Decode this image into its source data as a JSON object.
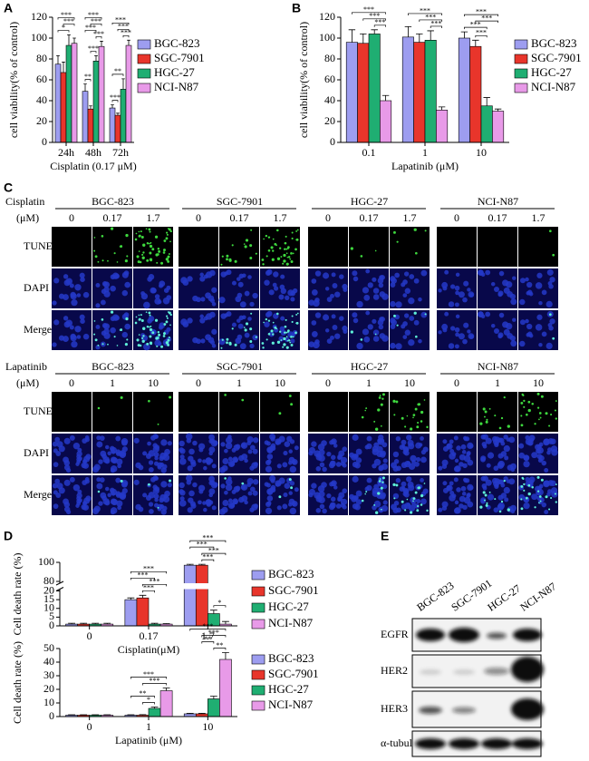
{
  "panel_labels": [
    "A",
    "B",
    "C",
    "D",
    "E"
  ],
  "chart_data": [
    {
      "type": "bar",
      "ylabel": "cell viability(% of control)",
      "xlabel": "Cisplatin (0.17 μM)",
      "categories": [
        "24h",
        "48h",
        "72h"
      ],
      "series": [
        {
          "name": "BGC-823",
          "color": "#9d9df0",
          "values": [
            75,
            49,
            33
          ],
          "errors": [
            8,
            7,
            3
          ]
        },
        {
          "name": "SGC-7901",
          "color": "#e8352b",
          "values": [
            67,
            32,
            26
          ],
          "errors": [
            10,
            3,
            2
          ]
        },
        {
          "name": "HGC-27",
          "color": "#1fae72",
          "values": [
            93,
            78,
            51
          ],
          "errors": [
            10,
            5,
            10
          ]
        },
        {
          "name": "NCI-N87",
          "color": "#e89ae8",
          "values": [
            95,
            92,
            93
          ],
          "errors": [
            5,
            5,
            5
          ]
        }
      ],
      "ylim": [
        0,
        120
      ],
      "yticks": [
        0,
        20,
        40,
        60,
        80,
        100,
        120
      ],
      "significance": [
        {
          "category": 0,
          "from": 0,
          "to": 2,
          "label": "*"
        },
        {
          "category": 0,
          "from": 1,
          "to": 3,
          "label": "***"
        },
        {
          "category": 0,
          "from": 0,
          "to": 3,
          "label": "***"
        },
        {
          "category": 1,
          "from": 0,
          "to": 1,
          "label": "**"
        },
        {
          "category": 1,
          "from": 1,
          "to": 2,
          "label": "***"
        },
        {
          "category": 1,
          "from": 2,
          "to": 3,
          "label": "***"
        },
        {
          "category": 1,
          "from": 0,
          "to": 2,
          "label": "***"
        },
        {
          "category": 1,
          "from": 1,
          "to": 3,
          "label": "***"
        },
        {
          "category": 1,
          "from": 0,
          "to": 3,
          "label": "***"
        },
        {
          "category": 2,
          "from": 0,
          "to": 1,
          "label": "***"
        },
        {
          "category": 2,
          "from": 0,
          "to": 2,
          "label": "**"
        },
        {
          "category": 2,
          "from": 2,
          "to": 3,
          "label": "***"
        },
        {
          "category": 2,
          "from": 1,
          "to": 3,
          "label": "***"
        },
        {
          "category": 2,
          "from": 0,
          "to": 3,
          "label": "***"
        }
      ]
    },
    {
      "type": "bar",
      "ylabel": "cell viability(% of control)",
      "xlabel": "Lapatinib (μM)",
      "categories": [
        "0.1",
        "1",
        "10"
      ],
      "series": [
        {
          "name": "BGC-823",
          "color": "#9d9df0",
          "values": [
            96,
            101,
            100
          ],
          "errors": [
            12,
            10,
            6
          ]
        },
        {
          "name": "SGC-7901",
          "color": "#e8352b",
          "values": [
            95,
            96,
            92
          ],
          "errors": [
            9,
            8,
            6
          ]
        },
        {
          "name": "HGC-27",
          "color": "#1fae72",
          "values": [
            104,
            98,
            35
          ],
          "errors": [
            4,
            9,
            8
          ]
        },
        {
          "name": "NCI-N87",
          "color": "#e89ae8",
          "values": [
            40,
            31,
            30
          ],
          "errors": [
            5,
            3,
            2
          ]
        }
      ],
      "ylim": [
        0,
        120
      ],
      "yticks": [
        0,
        20,
        40,
        60,
        80,
        100,
        120
      ],
      "significance": [
        {
          "category": 0,
          "from": 2,
          "to": 3,
          "label": "***"
        },
        {
          "category": 0,
          "from": 1,
          "to": 3,
          "label": "***"
        },
        {
          "category": 0,
          "from": 0,
          "to": 3,
          "label": "***"
        },
        {
          "category": 1,
          "from": 2,
          "to": 3,
          "label": "***"
        },
        {
          "category": 1,
          "from": 1,
          "to": 3,
          "label": "***"
        },
        {
          "category": 1,
          "from": 0,
          "to": 3,
          "label": "***"
        },
        {
          "category": 2,
          "from": 1,
          "to": 2,
          "label": "***"
        },
        {
          "category": 2,
          "from": 0,
          "to": 2,
          "label": "***"
        },
        {
          "category": 2,
          "from": 1,
          "to": 3,
          "label": "***"
        },
        {
          "category": 2,
          "from": 0,
          "to": 3,
          "label": "***"
        }
      ]
    },
    {
      "type": "bar",
      "ylabel": "Cell death rate (%)",
      "xlabel": "Cisplatin(μM)",
      "categories": [
        "0",
        "0.17",
        "1.7"
      ],
      "series": [
        {
          "name": "BGC-823",
          "color": "#9d9df0",
          "values": [
            1,
            15,
            97
          ],
          "errors": [
            0.5,
            1,
            1
          ]
        },
        {
          "name": "SGC-7901",
          "color": "#e8352b",
          "values": [
            1,
            16,
            97
          ],
          "errors": [
            0.5,
            1.5,
            1
          ]
        },
        {
          "name": "HGC-27",
          "color": "#1fae72",
          "values": [
            1,
            1,
            7
          ],
          "errors": [
            0.5,
            0.5,
            2
          ]
        },
        {
          "name": "NCI-N87",
          "color": "#e89ae8",
          "values": [
            1,
            1,
            1
          ],
          "errors": [
            0.5,
            0.3,
            1.5
          ]
        }
      ],
      "ylim": [
        0,
        100
      ],
      "ybreak": [
        20,
        80
      ],
      "yticks": [
        0,
        5,
        10,
        15,
        20,
        80,
        100
      ],
      "significance": [
        {
          "category": 1,
          "from": 1,
          "to": 2,
          "label": "***"
        },
        {
          "category": 1,
          "from": 1,
          "to": 3,
          "label": "***"
        },
        {
          "category": 1,
          "from": 0,
          "to": 2,
          "label": "***"
        },
        {
          "category": 1,
          "from": 0,
          "to": 3,
          "label": "***"
        },
        {
          "category": 2,
          "from": 2,
          "to": 3,
          "label": "*"
        },
        {
          "category": 2,
          "from": 1,
          "to": 2,
          "label": "***"
        },
        {
          "category": 2,
          "from": 1,
          "to": 3,
          "label": "***"
        },
        {
          "category": 2,
          "from": 0,
          "to": 2,
          "label": "***"
        },
        {
          "category": 2,
          "from": 0,
          "to": 3,
          "label": "***"
        }
      ]
    },
    {
      "type": "bar",
      "ylabel": "Cell death rate (%)",
      "xlabel": "Lapatinib (μM)",
      "categories": [
        "0",
        "1",
        "10"
      ],
      "series": [
        {
          "name": "BGC-823",
          "color": "#9d9df0",
          "values": [
            1,
            1,
            2
          ],
          "errors": [
            0.3,
            0.3,
            0.4
          ]
        },
        {
          "name": "SGC-7901",
          "color": "#e8352b",
          "values": [
            1,
            1,
            2
          ],
          "errors": [
            0.3,
            0.4,
            0.4
          ]
        },
        {
          "name": "HGC-27",
          "color": "#1fae72",
          "values": [
            1,
            6,
            13
          ],
          "errors": [
            0.3,
            1,
            2
          ]
        },
        {
          "name": "NCI-N87",
          "color": "#e89ae8",
          "values": [
            1,
            19,
            42
          ],
          "errors": [
            0.3,
            2,
            5
          ]
        }
      ],
      "ylim": [
        0,
        50
      ],
      "yticks": [
        0,
        10,
        20,
        30,
        40,
        50
      ],
      "significance": [
        {
          "category": 1,
          "from": 1,
          "to": 2,
          "label": "*"
        },
        {
          "category": 1,
          "from": 0,
          "to": 2,
          "label": "**"
        },
        {
          "category": 1,
          "from": 1,
          "to": 3,
          "label": "***"
        },
        {
          "category": 1,
          "from": 0,
          "to": 3,
          "label": "***"
        },
        {
          "category": 2,
          "from": 2,
          "to": 3,
          "label": "**"
        },
        {
          "category": 2,
          "from": 1,
          "to": 2,
          "label": "**"
        },
        {
          "category": 2,
          "from": 1,
          "to": 3,
          "label": "***"
        },
        {
          "category": 2,
          "from": 0,
          "to": 3,
          "label": "***"
        }
      ]
    }
  ],
  "microscopy": [
    {
      "treatment": "Cisplatin",
      "unit": "(μM)",
      "groups": [
        "BGC-823",
        "SGC-7901",
        "HGC-27",
        "NCI-N87"
      ],
      "doses": [
        "0",
        "0.17",
        "1.7"
      ],
      "rows": [
        "TUNEL",
        "DAPI",
        "Merge"
      ]
    },
    {
      "treatment": "Lapatinib",
      "unit": "(μM)",
      "groups": [
        "BGC-823",
        "SGC-7901",
        "HGC-27",
        "NCI-N87"
      ],
      "doses": [
        "0",
        "1",
        "10"
      ],
      "rows": [
        "TUNEL",
        "DAPI",
        "Merge"
      ]
    }
  ],
  "western_blot": {
    "cell_lines": [
      "BGC-823",
      "SGC-7901",
      "HGC-27",
      "NCI-N87"
    ],
    "proteins": [
      "EGFR",
      "HER2",
      "HER3",
      "α-tubulin"
    ]
  }
}
